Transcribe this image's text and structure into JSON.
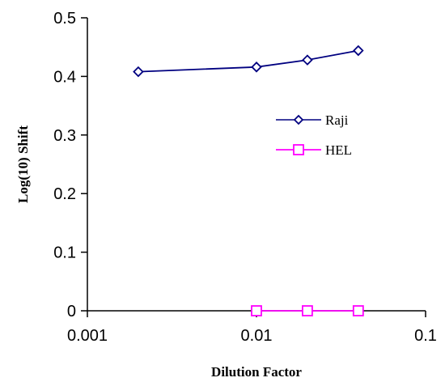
{
  "chart_data": {
    "type": "scatter",
    "xlabel": "Dilution Factor",
    "ylabel": "Log(10) Shift",
    "x_scale": "log",
    "xlim": [
      0.001,
      0.1
    ],
    "ylim": [
      0,
      0.5
    ],
    "x_ticks": [
      0.001,
      0.01,
      0.1
    ],
    "x_tick_labels": [
      "0.001",
      "0.01",
      "0.1"
    ],
    "y_ticks": [
      0,
      0.1,
      0.2,
      0.3,
      0.4,
      0.5
    ],
    "y_tick_labels": [
      "0",
      "0.1",
      "0.2",
      "0.3",
      "0.4",
      "0.5"
    ],
    "grid": false,
    "legend_position": "right, inside plot area",
    "series": [
      {
        "name": "Raji",
        "color": "#000080",
        "marker": "diamond",
        "x": [
          0.002,
          0.01,
          0.02,
          0.04
        ],
        "y": [
          0.408,
          0.416,
          0.428,
          0.444
        ]
      },
      {
        "name": "HEL",
        "color": "#FF00FF",
        "marker": "square",
        "x": [
          0.01,
          0.02,
          0.04
        ],
        "y": [
          0,
          0,
          0
        ]
      }
    ]
  }
}
